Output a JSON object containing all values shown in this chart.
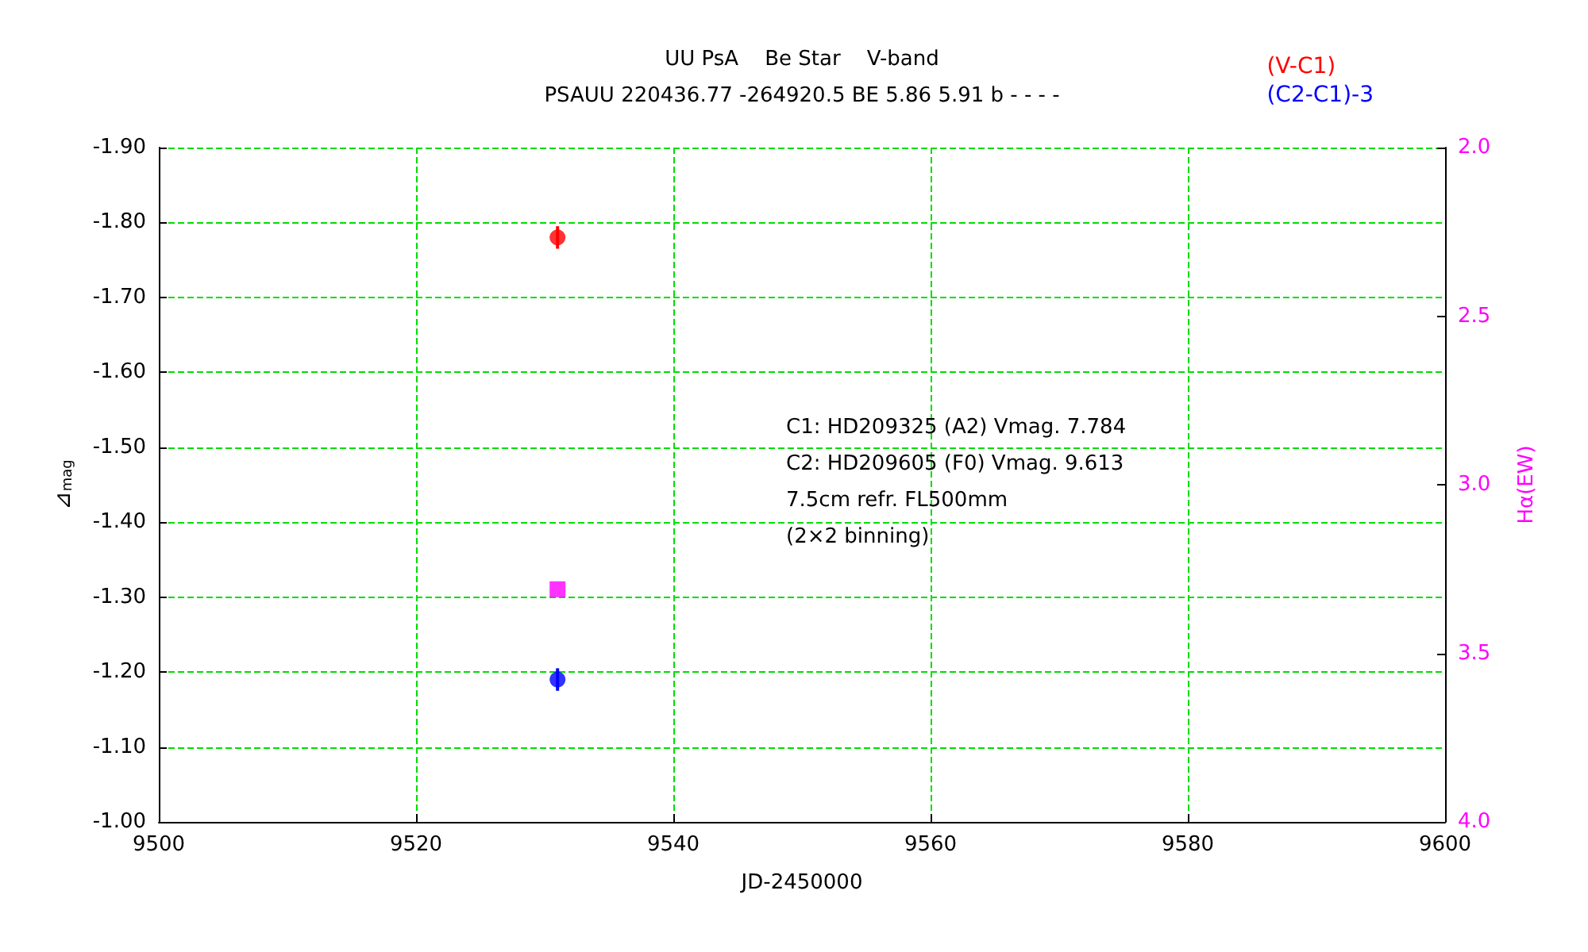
{
  "chart_data": {
    "type": "scatter",
    "title": "UU PsA    Be Star    V-band",
    "subtitle": "PSAUU 220436.77 -264920.5 BE 5.86 5.91 b - - - -",
    "xlabel": "JD-2450000",
    "ylabel": "⊿$_{mag}$",
    "y2label": "Hα(EW)",
    "annotations": [
      "C1: HD209325 (A2) Vmag. 7.784",
      "C2: HD209605 (F0) Vmag. 9.613",
      "7.5cm refr. FL500mm",
      "(2×2 binning)"
    ],
    "xlim": [
      9500,
      9600
    ],
    "xticks": [
      9500,
      9520,
      9540,
      9560,
      9580,
      9600
    ],
    "ylim": [
      -1.0,
      -1.9
    ],
    "yticks": [
      {
        "value": -1.9,
        "label": "-1.90"
      },
      {
        "value": -1.8,
        "label": "-1.80"
      },
      {
        "value": -1.7,
        "label": "-1.70"
      },
      {
        "value": -1.6,
        "label": "-1.60"
      },
      {
        "value": -1.5,
        "label": "-1.50"
      },
      {
        "value": -1.4,
        "label": "-1.40"
      },
      {
        "value": -1.3,
        "label": "-1.30"
      },
      {
        "value": -1.2,
        "label": "-1.20"
      },
      {
        "value": -1.1,
        "label": "-1.10"
      },
      {
        "value": -1.0,
        "label": "-1.00"
      }
    ],
    "y2lim": [
      4.0,
      2.0
    ],
    "y2ticks": [
      {
        "value": 2,
        "label": "2.0"
      },
      2.5,
      {
        "value": 3,
        "label": "3.0"
      },
      3.5,
      {
        "value": 4,
        "label": "4.0"
      }
    ],
    "grid": true,
    "legend": "top right",
    "x": [
      9531
    ],
    "series": [
      {
        "name": "(V-C1)",
        "color": "#ff0000",
        "values": [
          -1.78
        ],
        "errors": [
          0.015
        ],
        "marker": "circle"
      },
      {
        "name": "(C2-C1)-3",
        "color": "#0000ff",
        "values": [
          -1.19
        ],
        "errors": [
          0.015
        ],
        "marker": "circle"
      },
      {
        "color": "#ff00ff",
        "values": [
          3.31
        ],
        "axis": "y2",
        "marker": "square"
      }
    ]
  }
}
